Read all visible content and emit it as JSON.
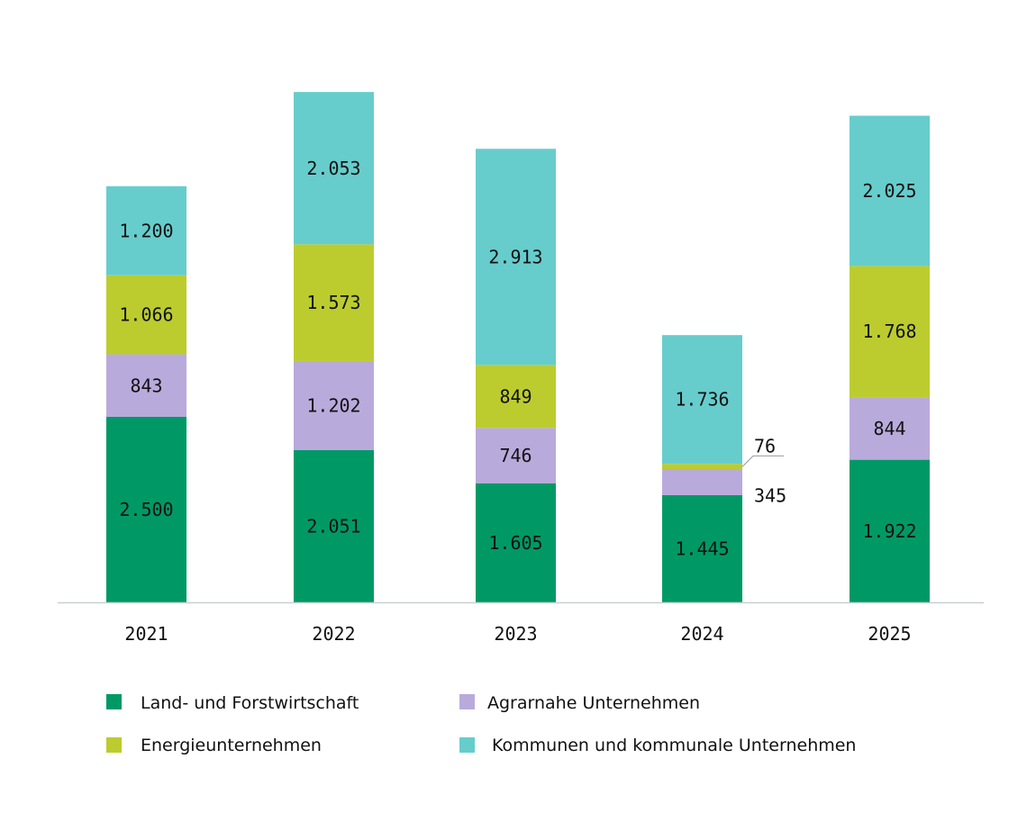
{
  "chart_data": {
    "type": "bar",
    "stacked": true,
    "categories": [
      "2021",
      "2022",
      "2023",
      "2024",
      "2025"
    ],
    "series": [
      {
        "name": "Land- und Forstwirtschaft",
        "color": "#009966",
        "values": [
          2500,
          2051,
          1605,
          1445,
          1922
        ],
        "labels": [
          "2.500",
          "2.051",
          "1.605",
          "1.445",
          "1.922"
        ]
      },
      {
        "name": "Agrarnahe Unternehmen",
        "color": "#b9aadc",
        "values": [
          843,
          1202,
          746,
          345,
          844
        ],
        "labels": [
          "843",
          "1.202",
          "746",
          "345",
          "844"
        ]
      },
      {
        "name": "Energieunternehmen",
        "color": "#bccc2e",
        "values": [
          1066,
          1573,
          849,
          76,
          1768
        ],
        "labels": [
          "1.066",
          "1.573",
          "849",
          "76",
          "1.768"
        ]
      },
      {
        "name": "Kommunen und kommunale Unternehmen",
        "color": "#66cdcc",
        "values": [
          1200,
          2053,
          2913,
          1736,
          2025
        ],
        "labels": [
          "1.200",
          "2.053",
          "2.913",
          "1.736",
          "2.025"
        ]
      }
    ],
    "title": "",
    "xlabel": "",
    "ylabel": "",
    "grid": false,
    "legend_placement": "bottom"
  }
}
